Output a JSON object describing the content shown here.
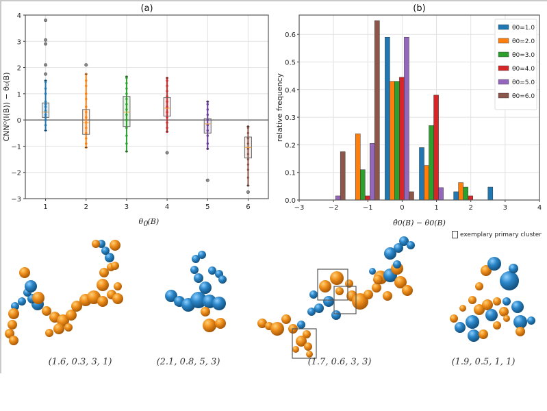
{
  "chart_data": [
    {
      "type": "box",
      "panel_title": "(a)",
      "xlabel": "θ0(B)",
      "ylabel": "CNN^O(I(B)) − θ0(B)",
      "ylim": [
        -3,
        4
      ],
      "yticks": [
        -3,
        -2,
        -1,
        0,
        1,
        2,
        3,
        4
      ],
      "xlim": [
        0.5,
        6.5
      ],
      "categories": [
        "1",
        "2",
        "3",
        "4",
        "5",
        "6"
      ],
      "grid": true,
      "reference_line": 0,
      "series": [
        {
          "category": "1",
          "color": "#1f77b4",
          "q1": 0.1,
          "median": 0.3,
          "q3": 0.65,
          "whisker_low": -0.4,
          "whisker_high": 1.5,
          "outliers": [
            1.75,
            2.1,
            2.9,
            3.05,
            3.8
          ],
          "points": [
            -0.4,
            -0.2,
            0.0,
            0.1,
            0.2,
            0.3,
            0.35,
            0.5,
            0.6,
            0.7,
            1.0,
            1.2,
            1.45,
            1.5
          ]
        },
        {
          "category": "2",
          "color": "#ff7f0e",
          "q1": -0.55,
          "median": -0.1,
          "q3": 0.4,
          "whisker_low": -1.05,
          "whisker_high": 1.75,
          "outliers": [
            2.1
          ],
          "points": [
            -1.05,
            -0.9,
            -0.7,
            -0.5,
            -0.3,
            -0.1,
            0.1,
            0.3,
            0.5,
            0.8,
            1.0,
            1.3,
            1.5,
            1.75
          ]
        },
        {
          "category": "3",
          "color": "#2ca02c",
          "q1": -0.25,
          "median": 0.3,
          "q3": 0.9,
          "whisker_low": -1.2,
          "whisker_high": 1.65,
          "outliers": [],
          "points": [
            -1.2,
            -0.9,
            -0.6,
            -0.3,
            0.0,
            0.2,
            0.4,
            0.6,
            0.8,
            1.0,
            1.2,
            1.4,
            1.6,
            1.65
          ]
        },
        {
          "category": "4",
          "color": "#d62728",
          "q1": 0.15,
          "median": 0.45,
          "q3": 0.85,
          "whisker_low": -0.45,
          "whisker_high": 1.6,
          "outliers": [
            -1.25
          ],
          "points": [
            -0.45,
            -0.3,
            -0.1,
            0.1,
            0.3,
            0.5,
            0.7,
            0.9,
            1.1,
            1.3,
            1.5,
            1.6
          ]
        },
        {
          "category": "5",
          "color": "#6a3d9a",
          "q1": -0.5,
          "median": -0.15,
          "q3": 0.05,
          "whisker_low": -1.1,
          "whisker_high": 0.7,
          "outliers": [
            -2.3
          ],
          "points": [
            -1.1,
            -0.9,
            -0.6,
            -0.4,
            -0.2,
            0.0,
            0.2,
            0.4,
            0.6,
            0.7
          ]
        },
        {
          "category": "6",
          "color": "#8c564b",
          "q1": -1.45,
          "median": -1.05,
          "q3": -0.65,
          "whisker_low": -2.5,
          "whisker_high": -0.25,
          "outliers": [
            -2.75
          ],
          "points": [
            -2.5,
            -2.2,
            -1.9,
            -1.7,
            -1.5,
            -1.3,
            -1.1,
            -0.9,
            -0.7,
            -0.5,
            -0.3,
            -0.25
          ]
        }
      ]
    },
    {
      "type": "bar",
      "panel_title": "(b)",
      "xlabel": "θ̂0(B) − θ0(B)",
      "ylabel": "relative frequency",
      "xlim": [
        -3,
        4
      ],
      "xticks": [
        -3,
        -2,
        -1,
        0,
        1,
        2,
        3,
        4
      ],
      "ylim": [
        0,
        0.67
      ],
      "yticks": [
        0.0,
        0.1,
        0.2,
        0.3,
        0.4,
        0.5,
        0.6
      ],
      "grid": true,
      "legend_position": "top-right",
      "categories": [
        -2,
        -1,
        0,
        1,
        2,
        3
      ],
      "series": [
        {
          "name": "θ0=1.0",
          "color": "#1f77b4",
          "values": [
            0.0,
            0.0,
            0.59,
            0.19,
            0.03,
            0.047
          ]
        },
        {
          "name": "θ0=2.0",
          "color": "#ff7f0e",
          "values": [
            0.0,
            0.24,
            0.43,
            0.125,
            0.063,
            0.0
          ]
        },
        {
          "name": "θ0=3.0",
          "color": "#2ca02c",
          "values": [
            0.0,
            0.11,
            0.43,
            0.27,
            0.047,
            0.0
          ]
        },
        {
          "name": "θ0=4.0",
          "color": "#d62728",
          "values": [
            0.0,
            0.015,
            0.445,
            0.38,
            0.015,
            0.0
          ]
        },
        {
          "name": "θ0=5.0",
          "color": "#9467bd",
          "values": [
            0.015,
            0.205,
            0.59,
            0.045,
            0.0,
            0.0
          ]
        },
        {
          "name": "θ0=6.0",
          "color": "#8c564b",
          "values": [
            0.175,
            0.65,
            0.03,
            0.0,
            0.0,
            0.0
          ]
        }
      ]
    }
  ],
  "clusters": {
    "legend_label": "exemplary primary cluster",
    "colors": {
      "primary_a": "#2b7bbf",
      "primary_b": "#f08c1a"
    },
    "captions": [
      "(1.6, 0.3, 3, 1)",
      "(2.1, 0.8, 5, 3)",
      "(1.7, 0.6, 3, 3)",
      "(1.9, 0.5, 1, 1)"
    ]
  }
}
